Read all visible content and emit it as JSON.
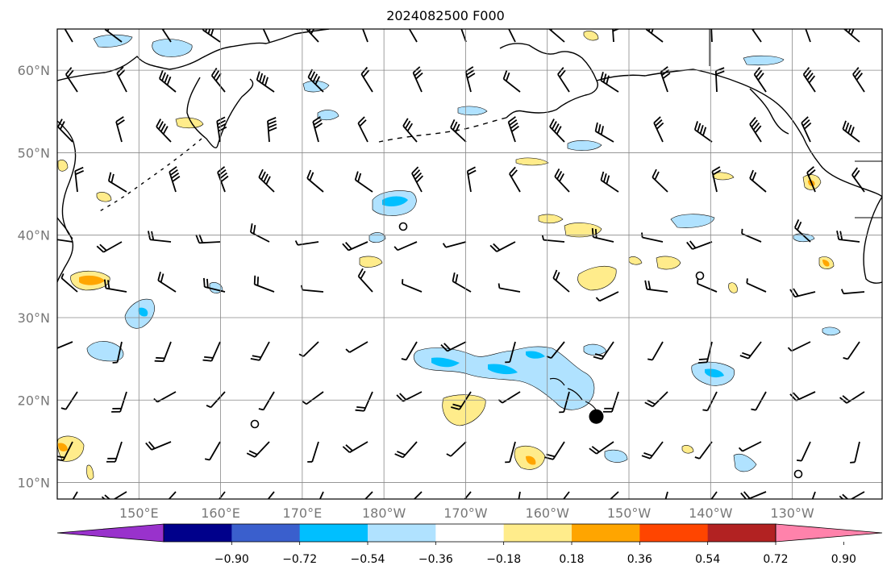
{
  "title": "2024082500 F000",
  "map": {
    "lat_labels": [
      "60°N",
      "50°N",
      "40°N",
      "30°N",
      "20°N",
      "10°N"
    ],
    "lat_values": [
      60,
      50,
      40,
      30,
      20,
      10
    ],
    "lon_labels": [
      "150°E",
      "160°E",
      "170°E",
      "180°W",
      "170°W",
      "160°W",
      "150°W",
      "140°W",
      "130°W"
    ],
    "lon_values": [
      150,
      160,
      170,
      180,
      190,
      200,
      210,
      220,
      230
    ],
    "extent": {
      "lon_min": 140,
      "lon_max": 241,
      "lat_min": 8,
      "lat_max": 65
    },
    "marker": {
      "lon": 206,
      "lat": 18
    }
  },
  "colorbar": {
    "tick_labels": [
      "−0.90",
      "−0.72",
      "−0.54",
      "−0.36",
      "−0.18",
      "0.18",
      "0.36",
      "0.54",
      "0.72",
      "0.90"
    ],
    "colors": [
      "#9932cc",
      "#00008b",
      "#3a5fcd",
      "#00bfff",
      "#b0e2ff",
      "#ffffff",
      "#ffec8b",
      "#ffa500",
      "#ff4500",
      "#b22222",
      "#ff82ab"
    ]
  }
}
